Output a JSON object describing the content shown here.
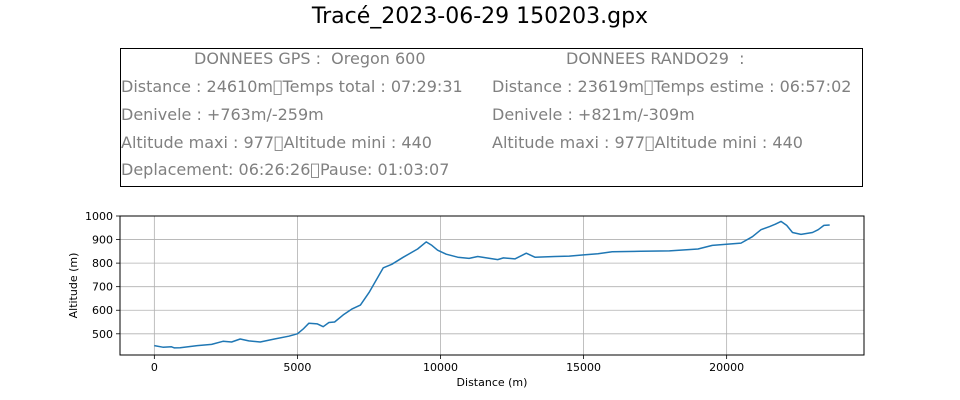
{
  "title": "Tracé_2023-06-29 150203.gpx",
  "info": {
    "gps_header": "DONNEES GPS :  Oregon 600",
    "rando_header": "DONNEES RANDO29  :",
    "gps_lines": [
      "Distance : 24610m\u0000Temps total : 07:29:31",
      "Denivele : +763m/-259m",
      "Altitude maxi : 977\u0000Altitude mini : 440",
      "Deplacement: 06:26:26\u0000Pause: 01:03:07"
    ],
    "rando_lines": [
      "Distance : 23619m\u0000Temps estime : 06:57:02",
      "Denivele : +821m/-309m",
      "Altitude maxi : 977\u0000Altitude mini : 440"
    ]
  },
  "colors": {
    "line": "#1f77b4",
    "info_text": "#808080",
    "grid": "#b0b0b0"
  },
  "chart_data": {
    "type": "line",
    "xlabel": "Distance (m)",
    "ylabel": "Altitude (m)",
    "xlim": [
      -1200,
      24800
    ],
    "ylim": [
      410,
      1000
    ],
    "xticks": [
      0,
      5000,
      10000,
      15000,
      20000
    ],
    "yticks": [
      500,
      600,
      700,
      800,
      900,
      1000
    ],
    "grid": true,
    "series": [
      {
        "x": [
          0,
          300,
          600,
          700,
          900,
          1500,
          2000,
          2400,
          2700,
          3000,
          3300,
          3700,
          4200,
          4700,
          5000,
          5200,
          5400,
          5700,
          5900,
          6100,
          6300,
          6600,
          6900,
          7200,
          7500,
          8000,
          8300,
          8700,
          9200,
          9500,
          9700,
          9900,
          10200,
          10600,
          11000,
          11300,
          12000,
          12200,
          12600,
          13000,
          13300,
          14000,
          14500,
          15000,
          15500,
          16000,
          17000,
          18000,
          19000,
          19500,
          20000,
          20500,
          20900,
          21200,
          21500,
          21700,
          21900,
          22100,
          22300,
          22600,
          23000,
          23200,
          23400,
          23600
        ],
        "y": [
          450,
          443,
          445,
          440,
          441,
          450,
          455,
          468,
          465,
          478,
          470,
          465,
          478,
          490,
          500,
          520,
          545,
          542,
          530,
          548,
          550,
          580,
          605,
          622,
          675,
          780,
          795,
          825,
          860,
          890,
          875,
          855,
          838,
          825,
          820,
          828,
          815,
          822,
          818,
          842,
          825,
          828,
          830,
          835,
          840,
          848,
          850,
          852,
          860,
          875,
          880,
          885,
          912,
          942,
          955,
          965,
          977,
          960,
          930,
          922,
          930,
          942,
          960,
          962
        ]
      }
    ]
  }
}
